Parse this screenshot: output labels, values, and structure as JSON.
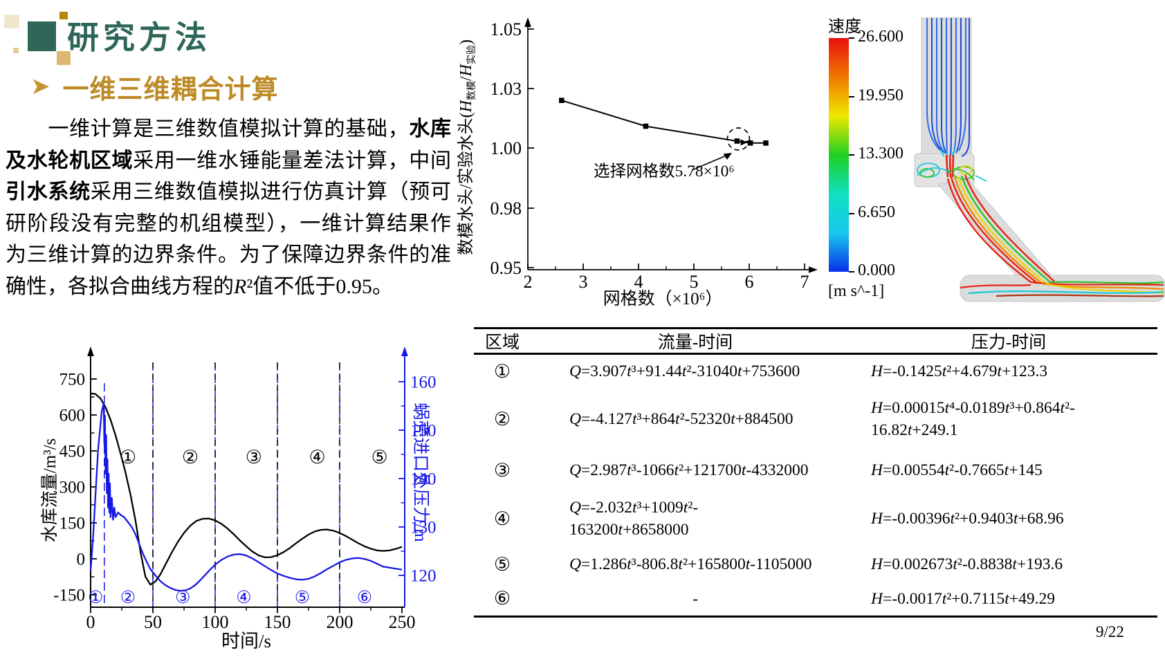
{
  "slide": {
    "page_number": "9/22",
    "background": "#ffffff"
  },
  "header": {
    "title": "研究方法",
    "bullet": "➤",
    "subtitle": "一维三维耦合计算",
    "title_color": "#2E6659",
    "subtitle_color": "#BD8A26"
  },
  "paragraph": {
    "segments": [
      {
        "t": "　　一维计算是三维数值模拟计算的基础，"
      },
      {
        "t": "水库及水轮机区域",
        "b": 1
      },
      {
        "t": "采用一维水锤能量差法计算，中间"
      },
      {
        "t": "引水系统",
        "b": 1
      },
      {
        "t": "采用三维数值模拟进行仿真计算（预可研阶段没有完整的机组模型），一维计算结果作为三维计算的边界条件。为了保障边界条件的准确性，各拟合曲线方程的"
      },
      {
        "t": "R",
        "i": 1
      },
      {
        "t": "²值不低于0.95。"
      }
    ]
  },
  "chart_data": [
    {
      "type": "line",
      "name": "grid-independence-study",
      "xlabel": "网格数（×10⁶）",
      "ylabel_parts": {
        "pre": "数模水头/实验水头(",
        "h": "H",
        "sub1": "数模",
        "slash": "/",
        "sub2": "实验",
        "post": ")"
      },
      "xticks": [
        2,
        3,
        4,
        5,
        6,
        7
      ],
      "yticks": [
        "1.05",
        "1.03",
        "1.00",
        "0.98",
        "0.95"
      ],
      "xlim": [
        2,
        7
      ],
      "ylim": [
        0.95,
        1.05
      ],
      "series": [
        {
          "name": "数模水头/实验水头",
          "color": "#000000",
          "points": [
            [
              2.61,
              1.024
            ],
            [
              4.13,
              1.011
            ],
            [
              5.78,
              1.0035
            ],
            [
              6.02,
              1.0025
            ],
            [
              6.3,
              1.0025
            ]
          ]
        }
      ],
      "selected_index": 2,
      "annotation": "选择网格数5.78×10⁶"
    },
    {
      "type": "line",
      "name": "1d-transient-boundary-curves",
      "xlabel": "时间/s",
      "xticks": [
        0,
        50,
        100,
        150,
        200,
        250
      ],
      "xlim": [
        0,
        250
      ],
      "left_axis": {
        "label": "水库流量/m³/s",
        "ticks": [
          750,
          600,
          450,
          300,
          150,
          0,
          -150
        ],
        "lim": [
          -150,
          750
        ],
        "color": "#000000"
      },
      "right_axis": {
        "label": "蜗壳进口处压力/m",
        "ticks": [
          160,
          150,
          140,
          130,
          120
        ],
        "lim": [
          113,
          160
        ],
        "color": "#1717E8"
      },
      "series": [
        {
          "name": "水库流量",
          "axis": "left",
          "color": "#000000",
          "points": [
            [
              0,
              690
            ],
            [
              4,
              687
            ],
            [
              8,
              668
            ],
            [
              12,
              632
            ],
            [
              16,
              580
            ],
            [
              20,
              515
            ],
            [
              24,
              440
            ],
            [
              28,
              360
            ],
            [
              32,
              268
            ],
            [
              36,
              160
            ],
            [
              40,
              30
            ],
            [
              44,
              -75
            ],
            [
              48,
              -108
            ],
            [
              52,
              -95
            ],
            [
              56,
              -65
            ],
            [
              60,
              -25
            ],
            [
              65,
              25
            ],
            [
              70,
              70
            ],
            [
              75,
              108
            ],
            [
              80,
              138
            ],
            [
              85,
              158
            ],
            [
              90,
              167
            ],
            [
              95,
              168
            ],
            [
              100,
              160
            ],
            [
              105,
              146
            ],
            [
              110,
              126
            ],
            [
              115,
              102
            ],
            [
              120,
              76
            ],
            [
              125,
              52
            ],
            [
              130,
              30
            ],
            [
              135,
              14
            ],
            [
              140,
              6
            ],
            [
              145,
              7
            ],
            [
              150,
              15
            ],
            [
              155,
              28
            ],
            [
              160,
              45
            ],
            [
              165,
              65
            ],
            [
              170,
              84
            ],
            [
              175,
              101
            ],
            [
              180,
              114
            ],
            [
              185,
              121
            ],
            [
              190,
              122
            ],
            [
              195,
              117
            ],
            [
              200,
              108
            ],
            [
              205,
              95
            ],
            [
              210,
              80
            ],
            [
              215,
              65
            ],
            [
              220,
              52
            ],
            [
              225,
              42
            ],
            [
              230,
              35
            ],
            [
              235,
              33
            ],
            [
              240,
              35
            ],
            [
              245,
              41
            ],
            [
              250,
              50
            ]
          ]
        },
        {
          "name": "蜗壳进口处压力",
          "axis": "right",
          "color": "#1717E8",
          "points": [
            [
              0,
              121
            ],
            [
              2,
              128
            ],
            [
              4,
              137
            ],
            [
              6,
              146
            ],
            [
              9,
              154
            ],
            [
              10.5,
              155.5
            ],
            [
              11,
              147
            ],
            [
              11.5,
              153
            ],
            [
              12,
              141
            ],
            [
              12.5,
              149
            ],
            [
              13,
              137
            ],
            [
              13.5,
              144
            ],
            [
              14,
              134
            ],
            [
              14.5,
              141
            ],
            [
              15,
              133
            ],
            [
              15.5,
              139
            ],
            [
              16,
              132
            ],
            [
              17,
              136
            ],
            [
              18,
              131.5
            ],
            [
              19,
              134
            ],
            [
              20,
              132
            ],
            [
              22,
              133
            ],
            [
              24,
              132.5
            ],
            [
              27,
              132
            ],
            [
              30,
              131
            ],
            [
              33,
              130
            ],
            [
              36,
              128.5
            ],
            [
              39,
              126.5
            ],
            [
              42,
              124.5
            ],
            [
              45,
              122.8
            ],
            [
              48,
              121.3
            ],
            [
              52,
              120
            ],
            [
              56,
              118.8
            ],
            [
              60,
              118
            ],
            [
              64,
              117.4
            ],
            [
              68,
              117
            ],
            [
              72,
              116.8
            ],
            [
              76,
              116.9
            ],
            [
              80,
              117.3
            ],
            [
              84,
              118
            ],
            [
              88,
              119
            ],
            [
              92,
              120.1
            ],
            [
              96,
              121.2
            ],
            [
              100,
              122.2
            ],
            [
              105,
              123.2
            ],
            [
              110,
              123.9
            ],
            [
              115,
              124.3
            ],
            [
              120,
              124.4
            ],
            [
              125,
              124.1
            ],
            [
              130,
              123.5
            ],
            [
              135,
              122.7
            ],
            [
              140,
              121.9
            ],
            [
              145,
              121.1
            ],
            [
              150,
              120.4
            ],
            [
              155,
              119.9
            ],
            [
              160,
              119.5
            ],
            [
              165,
              119.2
            ],
            [
              170,
              119.1
            ],
            [
              175,
              119.3
            ],
            [
              180,
              119.8
            ],
            [
              185,
              120.5
            ],
            [
              190,
              121.3
            ],
            [
              195,
              122
            ],
            [
              200,
              122.7
            ],
            [
              205,
              123.2
            ],
            [
              210,
              123.5
            ],
            [
              215,
              123.6
            ],
            [
              220,
              123.4
            ],
            [
              225,
              123
            ],
            [
              230,
              122.4
            ],
            [
              235,
              121.8
            ],
            [
              240,
              121.6
            ],
            [
              245,
              121.4
            ],
            [
              250,
              121.2
            ]
          ]
        }
      ],
      "flow_regions": {
        "labels": [
          "①",
          "②",
          "③",
          "④",
          "⑤"
        ],
        "x": [
          30,
          80,
          131,
          182,
          232
        ],
        "boundaries": [
          50,
          100,
          150,
          200
        ]
      },
      "pressure_regions": {
        "labels": [
          "①",
          "②",
          "③",
          "④",
          "⑤",
          "⑥"
        ],
        "x": [
          4,
          30,
          74,
          123,
          170,
          220
        ],
        "boundaries": [
          11,
          50,
          100,
          150,
          200
        ]
      }
    }
  ],
  "colorbar": {
    "title": "速度",
    "ticks": [
      "26.600",
      "19.950",
      "13.300",
      "6.650",
      "0.000"
    ],
    "unit": "[m s^-1]",
    "colors": [
      "#e81010",
      "#f07800",
      "#f0e800",
      "#20d020",
      "#10e0c0",
      "#18c8f0",
      "#0830e8"
    ]
  },
  "streamline_figure": {
    "palette": {
      "inlet": "#2a6cf0",
      "inlet2": "#1b4ad8",
      "cyan": "#19c8d8",
      "green": "#2ec22e",
      "yellow": "#efd400",
      "orange": "#f08b00",
      "red": "#e62010",
      "darkred": "#a83515"
    },
    "pipe_color": "#dcdcdc"
  },
  "table": {
    "headers": [
      "区域",
      "流量-时间",
      "压力-时间"
    ],
    "rows": [
      {
        "region": "①",
        "q": "Q=3.907t³+91.44t²-31040t+753600",
        "h": "H=-0.1425t²+4.679t+123.3"
      },
      {
        "region": "②",
        "q": "Q=-4.127t³+864t²-52320t+884500",
        "h": "H=0.00015t⁴-0.0189t³+0.864t²-\n16.82t+249.1"
      },
      {
        "region": "③",
        "q": "Q=2.987t³-1066t²+121700t-4332000",
        "h": "H=0.00554t²-0.7665t+145"
      },
      {
        "region": "④",
        "q": "Q=-2.032t³+1009t²-\n163200t+8658000",
        "h": "H=-0.00396t²+0.9403t+68.96"
      },
      {
        "region": "⑤",
        "q": "Q=1.286t³-806.8t²+165800t-1105000",
        "h": "H=0.002673t²-0.8838t+193.6"
      },
      {
        "region": "⑥",
        "q": "-",
        "h": "H=-0.0017t²+0.7115t+49.29"
      }
    ]
  }
}
